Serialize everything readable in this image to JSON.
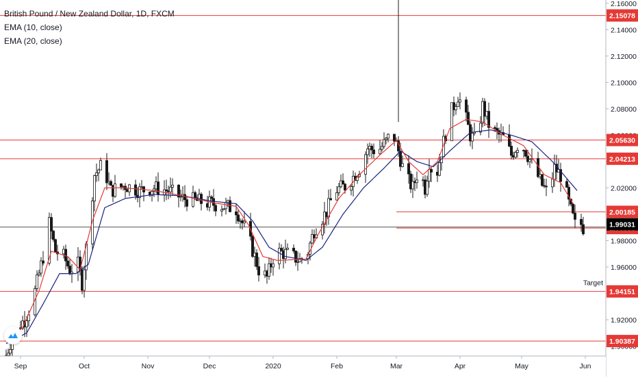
{
  "legend": {
    "symbol": "British Pound / New Zealand Dollar, 1D, FXCM",
    "ema10": "EMA (10, close)",
    "ema20": "EMA (20, close)"
  },
  "colors": {
    "candle": "#1a1a1a",
    "ema10": "#e53935",
    "ema20": "#1a237e",
    "hline": "#e53935",
    "label_bg": "#e53935",
    "last_bg": "#000000",
    "crosshair": "#555555"
  },
  "chart_data": {
    "type": "candlestick",
    "title": "British Pound / New Zealand Dollar, 1D, FXCM",
    "ylim": [
      1.8925,
      2.1625
    ],
    "y_ticks": [
      "2.16000",
      "2.14000",
      "2.12000",
      "2.10000",
      "2.08000",
      "2.06000",
      "2.04000",
      "2.02000",
      "2.00000",
      "1.98000",
      "1.96000",
      "1.94000",
      "1.92000",
      "1.90000"
    ],
    "x_ticks": [
      {
        "label": "Sep",
        "day": 7
      },
      {
        "label": "Oct",
        "day": 38
      },
      {
        "label": "Nov",
        "day": 69
      },
      {
        "label": "Dec",
        "day": 99
      },
      {
        "label": "2020",
        "day": 130
      },
      {
        "label": "Feb",
        "day": 161
      },
      {
        "label": "Mar",
        "day": 190
      },
      {
        "label": "Apr",
        "day": 221
      },
      {
        "label": "May",
        "day": 251
      },
      {
        "label": "Jun",
        "day": 282
      }
    ],
    "x_range_days": [
      -3,
      292
    ],
    "anchors": [
      {
        "day": 0,
        "price": 1.893
      },
      {
        "day": 4,
        "price": 1.912
      },
      {
        "day": 9,
        "price": 1.92
      },
      {
        "day": 13,
        "price": 1.935
      },
      {
        "day": 18,
        "price": 1.968
      },
      {
        "day": 21,
        "price": 1.993
      },
      {
        "day": 24,
        "price": 1.972
      },
      {
        "day": 28,
        "price": 1.968
      },
      {
        "day": 31,
        "price": 1.958
      },
      {
        "day": 35,
        "price": 1.962
      },
      {
        "day": 37,
        "price": 1.948
      },
      {
        "day": 40,
        "price": 1.988
      },
      {
        "day": 43,
        "price": 2.03
      },
      {
        "day": 47,
        "price": 2.038
      },
      {
        "day": 51,
        "price": 2.018
      },
      {
        "day": 58,
        "price": 2.022
      },
      {
        "day": 65,
        "price": 2.018
      },
      {
        "day": 72,
        "price": 2.02
      },
      {
        "day": 79,
        "price": 2.018
      },
      {
        "day": 86,
        "price": 2.012
      },
      {
        "day": 93,
        "price": 2.01
      },
      {
        "day": 100,
        "price": 2.008
      },
      {
        "day": 107,
        "price": 2.006
      },
      {
        "day": 112,
        "price": 2.004
      },
      {
        "day": 116,
        "price": 1.99
      },
      {
        "day": 119,
        "price": 1.978
      },
      {
        "day": 123,
        "price": 1.958
      },
      {
        "day": 127,
        "price": 1.952
      },
      {
        "day": 131,
        "price": 1.972
      },
      {
        "day": 137,
        "price": 1.97
      },
      {
        "day": 143,
        "price": 1.965
      },
      {
        "day": 147,
        "price": 1.972
      },
      {
        "day": 150,
        "price": 1.988
      },
      {
        "day": 156,
        "price": 2.002
      },
      {
        "day": 160,
        "price": 2.018
      },
      {
        "day": 166,
        "price": 2.022
      },
      {
        "day": 172,
        "price": 2.035
      },
      {
        "day": 176,
        "price": 2.05
      },
      {
        "day": 181,
        "price": 2.048
      },
      {
        "day": 185,
        "price": 2.055
      },
      {
        "day": 188,
        "price": 2.063
      },
      {
        "day": 191,
        "price": 2.048
      },
      {
        "day": 194,
        "price": 2.03
      },
      {
        "day": 198,
        "price": 2.02
      },
      {
        "day": 201,
        "price": 2.035
      },
      {
        "day": 204,
        "price": 2.02
      },
      {
        "day": 206,
        "price": 2.04
      },
      {
        "day": 209,
        "price": 2.025
      },
      {
        "day": 212,
        "price": 2.048
      },
      {
        "day": 216,
        "price": 2.075
      },
      {
        "day": 220,
        "price": 2.09
      },
      {
        "day": 223,
        "price": 2.078
      },
      {
        "day": 226,
        "price": 2.06
      },
      {
        "day": 229,
        "price": 2.055
      },
      {
        "day": 232,
        "price": 2.082
      },
      {
        "day": 235,
        "price": 2.068
      },
      {
        "day": 238,
        "price": 2.062
      },
      {
        "day": 242,
        "price": 2.058
      },
      {
        "day": 246,
        "price": 2.045
      },
      {
        "day": 250,
        "price": 2.055
      },
      {
        "day": 253,
        "price": 2.048
      },
      {
        "day": 257,
        "price": 2.035
      },
      {
        "day": 261,
        "price": 2.022
      },
      {
        "day": 264,
        "price": 2.015
      },
      {
        "day": 267,
        "price": 2.035
      },
      {
        "day": 271,
        "price": 2.028
      },
      {
        "day": 274,
        "price": 2.008
      },
      {
        "day": 277,
        "price": 1.992
      },
      {
        "day": 279,
        "price": 1.995
      },
      {
        "day": 281,
        "price": 1.99
      }
    ],
    "ema10_anchors": [
      {
        "day": 0,
        "price": 1.905
      },
      {
        "day": 8,
        "price": 1.914
      },
      {
        "day": 16,
        "price": 1.942
      },
      {
        "day": 22,
        "price": 1.972
      },
      {
        "day": 30,
        "price": 1.968
      },
      {
        "day": 36,
        "price": 1.958
      },
      {
        "day": 42,
        "price": 1.995
      },
      {
        "day": 48,
        "price": 2.02
      },
      {
        "day": 58,
        "price": 2.02
      },
      {
        "day": 72,
        "price": 2.018
      },
      {
        "day": 86,
        "price": 2.014
      },
      {
        "day": 100,
        "price": 2.009
      },
      {
        "day": 112,
        "price": 2.006
      },
      {
        "day": 118,
        "price": 1.992
      },
      {
        "day": 125,
        "price": 1.968
      },
      {
        "day": 132,
        "price": 1.965
      },
      {
        "day": 146,
        "price": 1.966
      },
      {
        "day": 152,
        "price": 1.985
      },
      {
        "day": 162,
        "price": 2.012
      },
      {
        "day": 172,
        "price": 2.03
      },
      {
        "day": 182,
        "price": 2.045
      },
      {
        "day": 190,
        "price": 2.056
      },
      {
        "day": 196,
        "price": 2.04
      },
      {
        "day": 203,
        "price": 2.03
      },
      {
        "day": 210,
        "price": 2.04
      },
      {
        "day": 216,
        "price": 2.065
      },
      {
        "day": 224,
        "price": 2.072
      },
      {
        "day": 232,
        "price": 2.07
      },
      {
        "day": 242,
        "price": 2.06
      },
      {
        "day": 252,
        "price": 2.052
      },
      {
        "day": 262,
        "price": 2.03
      },
      {
        "day": 270,
        "price": 2.024
      },
      {
        "day": 276,
        "price": 2.008
      }
    ],
    "ema20_anchors": [
      {
        "day": 0,
        "price": 1.902
      },
      {
        "day": 10,
        "price": 1.91
      },
      {
        "day": 18,
        "price": 1.932
      },
      {
        "day": 26,
        "price": 1.955
      },
      {
        "day": 34,
        "price": 1.955
      },
      {
        "day": 40,
        "price": 1.962
      },
      {
        "day": 48,
        "price": 2.005
      },
      {
        "day": 58,
        "price": 2.012
      },
      {
        "day": 72,
        "price": 2.015
      },
      {
        "day": 86,
        "price": 2.014
      },
      {
        "day": 100,
        "price": 2.01
      },
      {
        "day": 112,
        "price": 2.008
      },
      {
        "day": 120,
        "price": 1.995
      },
      {
        "day": 128,
        "price": 1.975
      },
      {
        "day": 136,
        "price": 1.968
      },
      {
        "day": 146,
        "price": 1.965
      },
      {
        "day": 154,
        "price": 1.975
      },
      {
        "day": 164,
        "price": 2.0
      },
      {
        "day": 174,
        "price": 2.02
      },
      {
        "day": 184,
        "price": 2.035
      },
      {
        "day": 192,
        "price": 2.048
      },
      {
        "day": 200,
        "price": 2.04
      },
      {
        "day": 208,
        "price": 2.036
      },
      {
        "day": 216,
        "price": 2.048
      },
      {
        "day": 226,
        "price": 2.062
      },
      {
        "day": 236,
        "price": 2.064
      },
      {
        "day": 246,
        "price": 2.06
      },
      {
        "day": 256,
        "price": 2.055
      },
      {
        "day": 266,
        "price": 2.04
      },
      {
        "day": 278,
        "price": 2.018
      }
    ],
    "horizontal_levels": [
      {
        "price": 2.15078,
        "label": "2.15078"
      },
      {
        "price": 2.0563,
        "label": "2.05630"
      },
      {
        "price": 2.04213,
        "label": "2.04213"
      },
      {
        "price": 1.94151,
        "label": "1.94151"
      },
      {
        "price": 1.90387,
        "label": "1.90387"
      }
    ],
    "range_levels": [
      {
        "price": 2.00185,
        "label": "2.00185",
        "from_day": 190
      },
      {
        "price": 1.98955,
        "label": "1.98955",
        "from_day": 190
      }
    ],
    "last_price": {
      "price": 1.99031,
      "label": "1.99031"
    },
    "target": {
      "text": "Target",
      "price": 1.94151
    },
    "spike": {
      "day": 191,
      "high": 2.1625
    }
  }
}
